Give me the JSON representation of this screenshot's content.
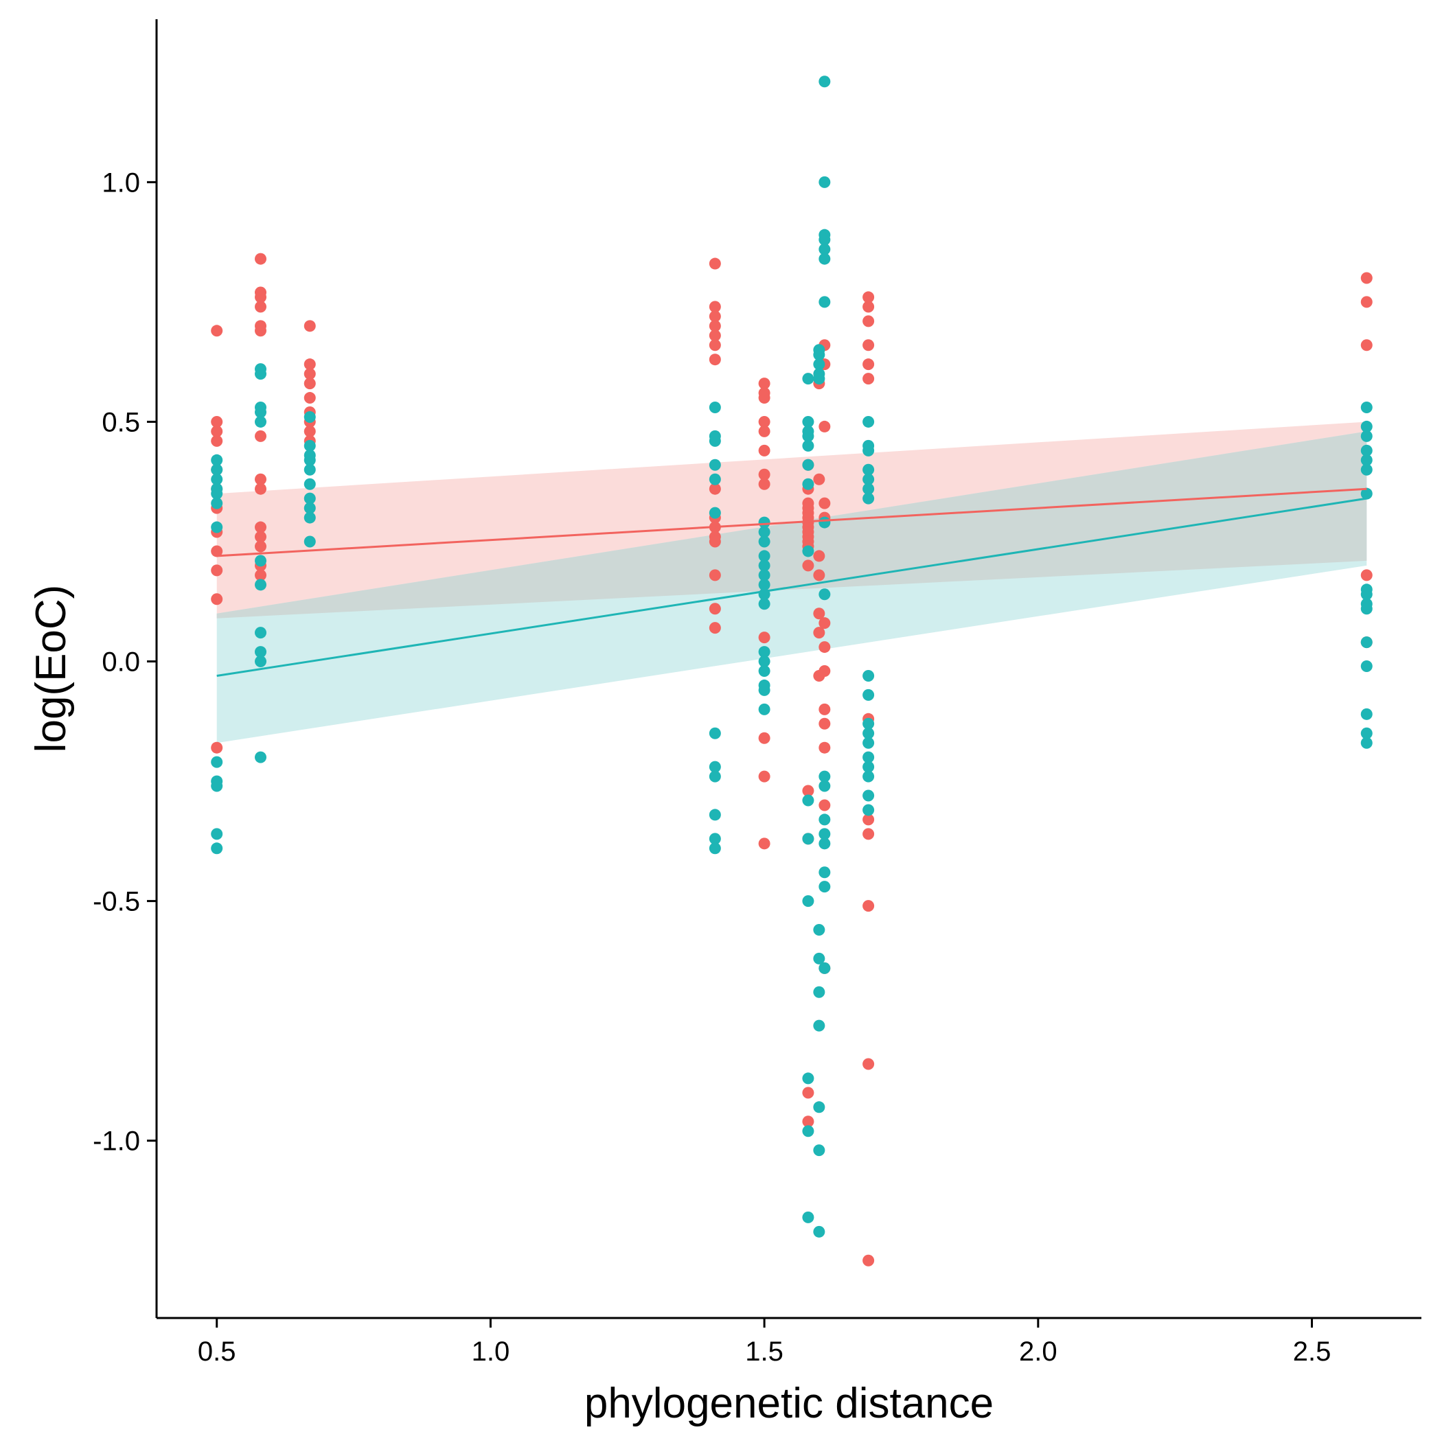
{
  "chart_data": {
    "type": "scatter",
    "xlabel": "phylogenetic distance",
    "ylabel": "log(EoC)",
    "xlim": [
      0.39,
      2.7
    ],
    "ylim": [
      -1.37,
      1.34
    ],
    "x_ticks": [
      0.5,
      1.0,
      1.5,
      2.0,
      2.5
    ],
    "x_tick_labels": [
      "0.5",
      "1.0",
      "1.5",
      "2.0",
      "2.5"
    ],
    "y_ticks": [
      -1.0,
      -0.5,
      0.0,
      0.5,
      1.0
    ],
    "y_tick_labels": [
      "-1.0",
      "-0.5",
      "0.0",
      "0.5",
      "1.0"
    ],
    "grid": false,
    "legend": "none",
    "ribbon_overlap_color": "#cdd8d6",
    "series": [
      {
        "color": "#f2635e",
        "fill": "#fbdcda",
        "fit": {
          "x": [
            0.5,
            2.6
          ],
          "y": [
            0.22,
            0.36
          ]
        },
        "band": {
          "x": [
            0.5,
            2.6
          ],
          "lower": [
            0.09,
            0.21
          ],
          "upper": [
            0.35,
            0.5
          ]
        },
        "points": [
          [
            0.5,
            0.69
          ],
          [
            0.5,
            0.5
          ],
          [
            0.5,
            0.48
          ],
          [
            0.5,
            0.46
          ],
          [
            0.5,
            0.4
          ],
          [
            0.5,
            0.36
          ],
          [
            0.5,
            0.32
          ],
          [
            0.5,
            0.27
          ],
          [
            0.5,
            0.23
          ],
          [
            0.5,
            0.19
          ],
          [
            0.5,
            0.13
          ],
          [
            0.5,
            -0.18
          ],
          [
            0.58,
            0.84
          ],
          [
            0.58,
            0.77
          ],
          [
            0.58,
            0.76
          ],
          [
            0.58,
            0.74
          ],
          [
            0.58,
            0.7
          ],
          [
            0.58,
            0.69
          ],
          [
            0.58,
            0.47
          ],
          [
            0.58,
            0.38
          ],
          [
            0.58,
            0.36
          ],
          [
            0.58,
            0.28
          ],
          [
            0.58,
            0.26
          ],
          [
            0.58,
            0.24
          ],
          [
            0.58,
            0.2
          ],
          [
            0.58,
            0.18
          ],
          [
            0.67,
            0.7
          ],
          [
            0.67,
            0.62
          ],
          [
            0.67,
            0.6
          ],
          [
            0.67,
            0.58
          ],
          [
            0.67,
            0.55
          ],
          [
            0.67,
            0.52
          ],
          [
            0.67,
            0.5
          ],
          [
            0.67,
            0.48
          ],
          [
            0.67,
            0.46
          ],
          [
            1.41,
            0.83
          ],
          [
            1.41,
            0.74
          ],
          [
            1.41,
            0.72
          ],
          [
            1.41,
            0.7
          ],
          [
            1.41,
            0.68
          ],
          [
            1.41,
            0.66
          ],
          [
            1.41,
            0.63
          ],
          [
            1.41,
            0.36
          ],
          [
            1.41,
            0.3
          ],
          [
            1.41,
            0.28
          ],
          [
            1.41,
            0.26
          ],
          [
            1.41,
            0.25
          ],
          [
            1.41,
            0.18
          ],
          [
            1.41,
            0.11
          ],
          [
            1.41,
            0.07
          ],
          [
            1.5,
            0.58
          ],
          [
            1.5,
            0.56
          ],
          [
            1.5,
            0.55
          ],
          [
            1.5,
            0.5
          ],
          [
            1.5,
            0.48
          ],
          [
            1.5,
            0.44
          ],
          [
            1.5,
            0.39
          ],
          [
            1.5,
            0.37
          ],
          [
            1.5,
            0.05
          ],
          [
            1.5,
            -0.16
          ],
          [
            1.5,
            -0.24
          ],
          [
            1.5,
            -0.38
          ],
          [
            1.58,
            0.41
          ],
          [
            1.58,
            0.36
          ],
          [
            1.58,
            0.33
          ],
          [
            1.58,
            0.32
          ],
          [
            1.58,
            0.31
          ],
          [
            1.58,
            0.3
          ],
          [
            1.58,
            0.29
          ],
          [
            1.58,
            0.28
          ],
          [
            1.58,
            0.27
          ],
          [
            1.58,
            0.26
          ],
          [
            1.58,
            0.25
          ],
          [
            1.58,
            0.24
          ],
          [
            1.58,
            0.2
          ],
          [
            1.58,
            -0.27
          ],
          [
            1.58,
            -0.37
          ],
          [
            1.58,
            -0.9
          ],
          [
            1.58,
            -0.96
          ],
          [
            1.6,
            0.58
          ],
          [
            1.6,
            0.38
          ],
          [
            1.6,
            0.22
          ],
          [
            1.6,
            0.18
          ],
          [
            1.6,
            0.1
          ],
          [
            1.6,
            0.06
          ],
          [
            1.6,
            -0.03
          ],
          [
            1.61,
            0.66
          ],
          [
            1.61,
            0.62
          ],
          [
            1.61,
            0.49
          ],
          [
            1.61,
            0.33
          ],
          [
            1.61,
            0.3
          ],
          [
            1.61,
            0.08
          ],
          [
            1.61,
            0.03
          ],
          [
            1.61,
            -0.02
          ],
          [
            1.61,
            -0.1
          ],
          [
            1.61,
            -0.13
          ],
          [
            1.61,
            -0.18
          ],
          [
            1.61,
            -0.3
          ],
          [
            1.61,
            -0.64
          ],
          [
            1.69,
            0.76
          ],
          [
            1.69,
            0.74
          ],
          [
            1.69,
            0.71
          ],
          [
            1.69,
            0.66
          ],
          [
            1.69,
            0.62
          ],
          [
            1.69,
            0.59
          ],
          [
            1.69,
            -0.12
          ],
          [
            1.69,
            -0.33
          ],
          [
            1.69,
            -0.36
          ],
          [
            1.69,
            -0.51
          ],
          [
            1.69,
            -0.84
          ],
          [
            1.69,
            -1.25
          ],
          [
            2.6,
            0.8
          ],
          [
            2.6,
            0.75
          ],
          [
            2.6,
            0.66
          ],
          [
            2.6,
            0.18
          ],
          [
            2.6,
            0.04
          ]
        ]
      },
      {
        "color": "#1eb5b5",
        "fill": "#d1eeee",
        "fit": {
          "x": [
            0.5,
            2.6
          ],
          "y": [
            -0.03,
            0.34
          ]
        },
        "band": {
          "x": [
            0.5,
            2.6
          ],
          "lower": [
            -0.17,
            0.2
          ],
          "upper": [
            0.1,
            0.48
          ]
        },
        "points": [
          [
            0.5,
            0.42
          ],
          [
            0.5,
            0.4
          ],
          [
            0.5,
            0.38
          ],
          [
            0.5,
            0.36
          ],
          [
            0.5,
            0.35
          ],
          [
            0.5,
            0.33
          ],
          [
            0.5,
            0.28
          ],
          [
            0.5,
            -0.21
          ],
          [
            0.5,
            -0.25
          ],
          [
            0.5,
            -0.26
          ],
          [
            0.5,
            -0.36
          ],
          [
            0.5,
            -0.39
          ],
          [
            0.58,
            0.61
          ],
          [
            0.58,
            0.6
          ],
          [
            0.58,
            0.53
          ],
          [
            0.58,
            0.52
          ],
          [
            0.58,
            0.5
          ],
          [
            0.58,
            0.21
          ],
          [
            0.58,
            0.16
          ],
          [
            0.58,
            0.06
          ],
          [
            0.58,
            0.02
          ],
          [
            0.58,
            0.0
          ],
          [
            0.58,
            -0.2
          ],
          [
            0.67,
            0.51
          ],
          [
            0.67,
            0.45
          ],
          [
            0.67,
            0.43
          ],
          [
            0.67,
            0.42
          ],
          [
            0.67,
            0.4
          ],
          [
            0.67,
            0.37
          ],
          [
            0.67,
            0.34
          ],
          [
            0.67,
            0.32
          ],
          [
            0.67,
            0.3
          ],
          [
            0.67,
            0.25
          ],
          [
            1.41,
            0.53
          ],
          [
            1.41,
            0.47
          ],
          [
            1.41,
            0.46
          ],
          [
            1.41,
            0.41
          ],
          [
            1.41,
            0.38
          ],
          [
            1.41,
            0.31
          ],
          [
            1.41,
            -0.15
          ],
          [
            1.41,
            -0.22
          ],
          [
            1.41,
            -0.24
          ],
          [
            1.41,
            -0.32
          ],
          [
            1.41,
            -0.37
          ],
          [
            1.41,
            -0.39
          ],
          [
            1.5,
            0.29
          ],
          [
            1.5,
            0.27
          ],
          [
            1.5,
            0.25
          ],
          [
            1.5,
            0.22
          ],
          [
            1.5,
            0.2
          ],
          [
            1.5,
            0.18
          ],
          [
            1.5,
            0.16
          ],
          [
            1.5,
            0.14
          ],
          [
            1.5,
            0.12
          ],
          [
            1.5,
            0.02
          ],
          [
            1.5,
            0.0
          ],
          [
            1.5,
            -0.02
          ],
          [
            1.5,
            -0.05
          ],
          [
            1.5,
            -0.06
          ],
          [
            1.5,
            -0.1
          ],
          [
            1.58,
            0.59
          ],
          [
            1.58,
            0.5
          ],
          [
            1.58,
            0.48
          ],
          [
            1.58,
            0.47
          ],
          [
            1.58,
            0.45
          ],
          [
            1.58,
            0.41
          ],
          [
            1.58,
            0.37
          ],
          [
            1.58,
            0.23
          ],
          [
            1.58,
            -0.29
          ],
          [
            1.58,
            -0.37
          ],
          [
            1.58,
            -0.5
          ],
          [
            1.58,
            -0.87
          ],
          [
            1.58,
            -0.98
          ],
          [
            1.58,
            -1.16
          ],
          [
            1.6,
            0.65
          ],
          [
            1.6,
            0.64
          ],
          [
            1.6,
            0.62
          ],
          [
            1.6,
            0.6
          ],
          [
            1.6,
            0.59
          ],
          [
            1.6,
            -0.56
          ],
          [
            1.6,
            -0.62
          ],
          [
            1.6,
            -0.69
          ],
          [
            1.6,
            -0.76
          ],
          [
            1.6,
            -0.93
          ],
          [
            1.6,
            -1.02
          ],
          [
            1.6,
            -1.19
          ],
          [
            1.61,
            1.21
          ],
          [
            1.61,
            1.0
          ],
          [
            1.61,
            0.89
          ],
          [
            1.61,
            0.88
          ],
          [
            1.61,
            0.86
          ],
          [
            1.61,
            0.84
          ],
          [
            1.61,
            0.75
          ],
          [
            1.61,
            0.29
          ],
          [
            1.61,
            0.14
          ],
          [
            1.61,
            -0.24
          ],
          [
            1.61,
            -0.26
          ],
          [
            1.61,
            -0.33
          ],
          [
            1.61,
            -0.36
          ],
          [
            1.61,
            -0.38
          ],
          [
            1.61,
            -0.44
          ],
          [
            1.61,
            -0.47
          ],
          [
            1.61,
            -0.64
          ],
          [
            1.69,
            0.5
          ],
          [
            1.69,
            0.45
          ],
          [
            1.69,
            0.44
          ],
          [
            1.69,
            0.4
          ],
          [
            1.69,
            0.38
          ],
          [
            1.69,
            0.36
          ],
          [
            1.69,
            0.34
          ],
          [
            1.69,
            -0.03
          ],
          [
            1.69,
            -0.07
          ],
          [
            1.69,
            -0.13
          ],
          [
            1.69,
            -0.15
          ],
          [
            1.69,
            -0.17
          ],
          [
            1.69,
            -0.2
          ],
          [
            1.69,
            -0.22
          ],
          [
            1.69,
            -0.24
          ],
          [
            1.69,
            -0.28
          ],
          [
            1.69,
            -0.31
          ],
          [
            2.6,
            0.53
          ],
          [
            2.6,
            0.49
          ],
          [
            2.6,
            0.47
          ],
          [
            2.6,
            0.44
          ],
          [
            2.6,
            0.42
          ],
          [
            2.6,
            0.4
          ],
          [
            2.6,
            0.35
          ],
          [
            2.6,
            0.15
          ],
          [
            2.6,
            0.14
          ],
          [
            2.6,
            0.12
          ],
          [
            2.6,
            0.11
          ],
          [
            2.6,
            0.04
          ],
          [
            2.6,
            -0.01
          ],
          [
            2.6,
            -0.11
          ],
          [
            2.6,
            -0.15
          ],
          [
            2.6,
            -0.17
          ]
        ]
      }
    ]
  }
}
